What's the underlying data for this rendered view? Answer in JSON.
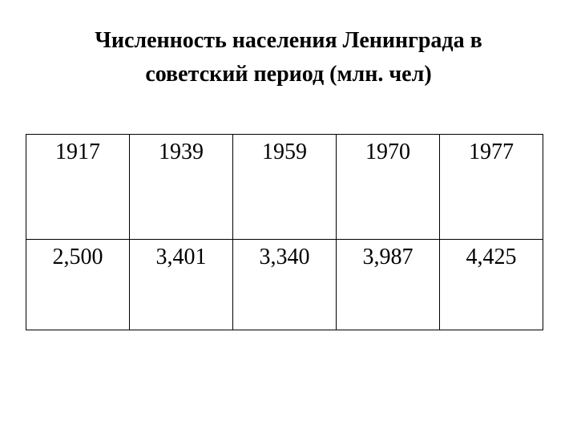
{
  "header": {
    "title": "Численность населения Ленинграда в советский период (млн. чел)"
  },
  "table": {
    "rows": [
      [
        "1917",
        "1939",
        "1959",
        "1970",
        "1977"
      ],
      [
        "2,500",
        "3,401",
        "3,340",
        "3,987",
        "4,425"
      ]
    ]
  }
}
